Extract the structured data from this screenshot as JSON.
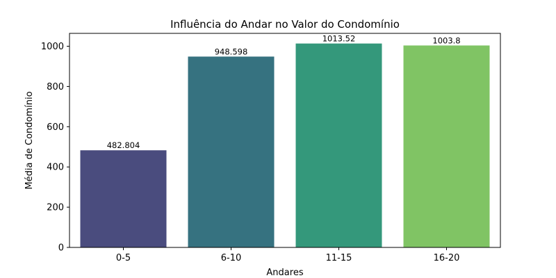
{
  "chart_data": {
    "type": "bar",
    "title": "Influência do Andar no Valor do Condomínio",
    "xlabel": "Andares",
    "ylabel": "Média de Condomínio",
    "categories": [
      "0-5",
      "6-10",
      "11-15",
      "16-20"
    ],
    "values": [
      482.804,
      948.598,
      1013.52,
      1003.8
    ],
    "value_labels": [
      "482.804",
      "948.598",
      "1013.52",
      "1003.8"
    ],
    "colors": [
      "#4a4c7e",
      "#367280",
      "#34987b",
      "#80c464"
    ],
    "ylim": [
      0,
      1064
    ],
    "yticks": [
      0,
      200,
      400,
      600,
      800,
      1000
    ],
    "grid": false,
    "legend": "none"
  }
}
